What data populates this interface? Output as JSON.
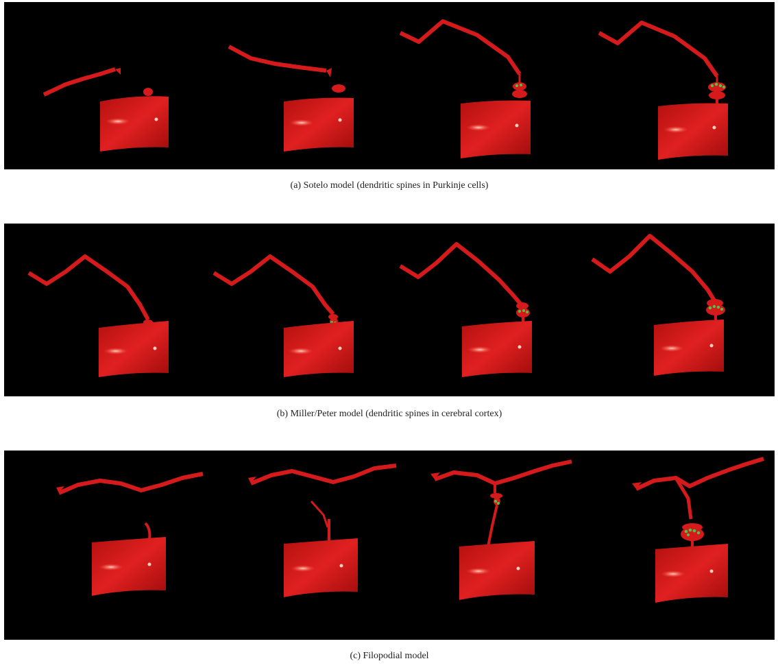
{
  "figure": {
    "panels": [
      {
        "id": "a",
        "caption": "(a)  Sotelo model (dendritic spines in Purkinje cells)",
        "stages": 4
      },
      {
        "id": "b",
        "caption": "(b)  Miller/Peter model (dendritic spines in cerebral cortex)",
        "stages": 4
      },
      {
        "id": "c",
        "caption": "(c)  Filopodial model",
        "stages": 4
      }
    ]
  },
  "colors": {
    "background": "#000000",
    "structure": "#d41a1a",
    "structure_highlight": "#ff6a5a",
    "vesicles": "#4fc24a"
  }
}
